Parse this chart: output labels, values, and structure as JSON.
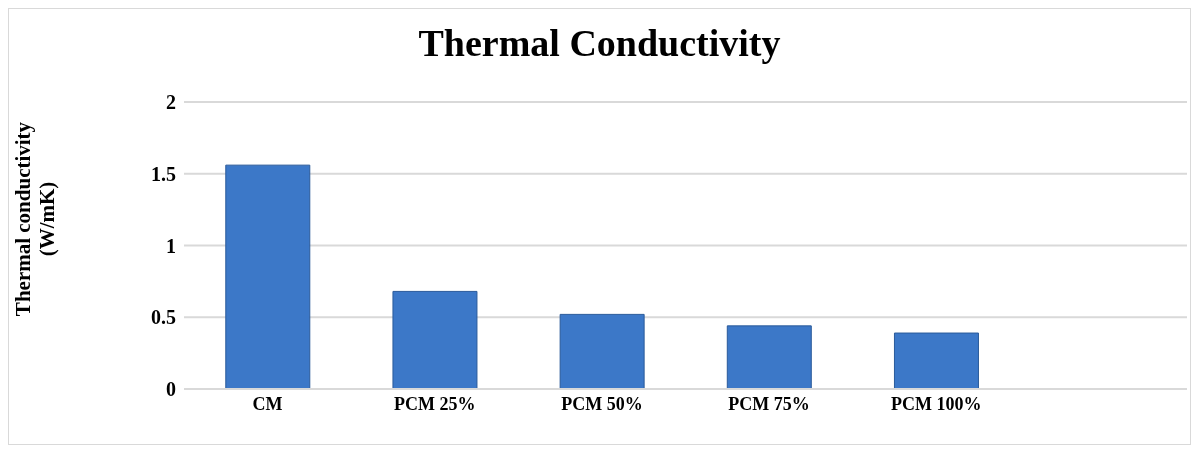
{
  "chart_data": {
    "type": "bar",
    "title": "Thermal Conductivity",
    "ylabel": "Thermal conductivity\n(W/mK)",
    "categories": [
      "CM",
      "PCM 25%",
      "PCM 50%",
      "PCM 75%",
      "PCM 100%",
      null
    ],
    "values": [
      1.56,
      0.68,
      0.52,
      0.44,
      0.39,
      null
    ],
    "color": "#3c78c8",
    "ylim": [
      0,
      2
    ],
    "yticks": [
      0,
      0.5,
      1,
      1.5,
      2
    ],
    "grid": "y",
    "legend": false
  }
}
